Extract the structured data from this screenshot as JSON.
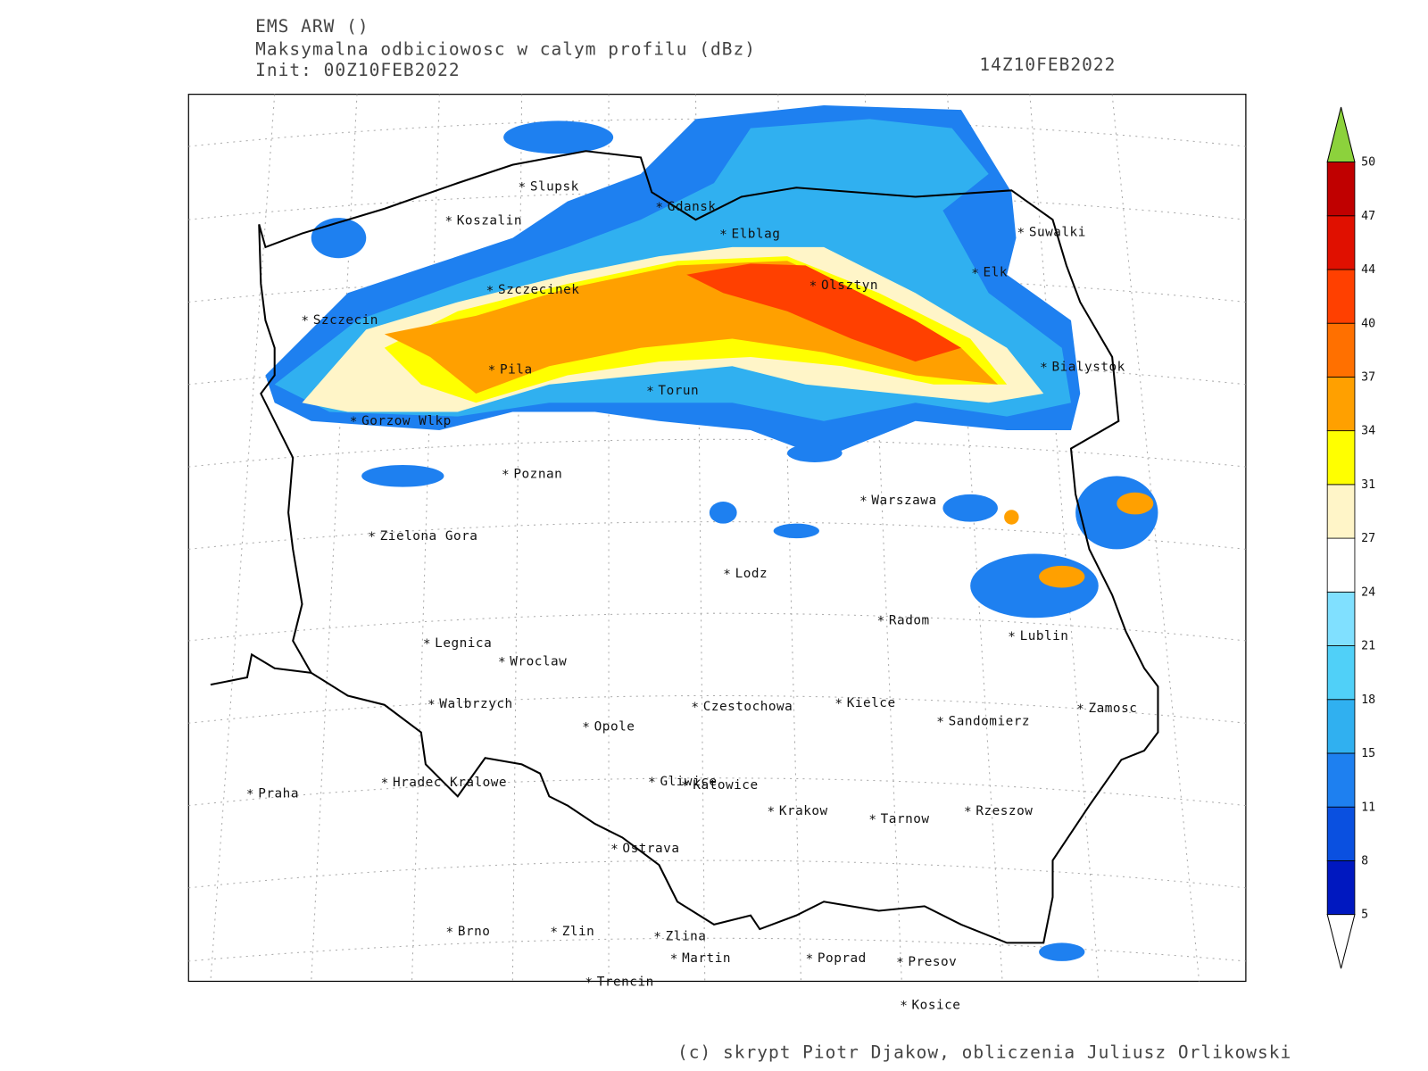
{
  "header": {
    "model": "EMS ARW ()",
    "field": "Maksymalna odbiciowosc w calym profilu (dBz)",
    "init": "Init: 00Z10FEB2022",
    "valid": "14Z10FEB2022"
  },
  "cities": [
    "Slupsk",
    "Koszalin",
    "Gdansk",
    "Elblag",
    "Suwalki",
    "Elk",
    "Olsztyn",
    "Szczecinek",
    "Szczecin",
    "Bialystok",
    "Pila",
    "Torun",
    "Gorzow Wlkp",
    "Poznan",
    "Warszawa",
    "Zielona Gora",
    "Lodz",
    "Radom",
    "Lublin",
    "Legnica",
    "Wroclaw",
    "Walbrzych",
    "Czestochowa",
    "Kielce",
    "Sandomierz",
    "Zamosc",
    "Opole",
    "Praha",
    "Hradec Kralowe",
    "Gliwice",
    "Katowice",
    "Krakow",
    "Tarnow",
    "Rzeszow",
    "Ostrava",
    "Brno",
    "Zlin",
    "Zlina",
    "Martin",
    "Poprad",
    "Presov",
    "Trencin",
    "Kosice"
  ],
  "colorbar": {
    "labels": [
      5,
      8,
      11,
      15,
      18,
      21,
      24,
      27,
      31,
      34,
      37,
      40,
      44,
      47,
      50
    ],
    "colors": [
      "#ffffff",
      "#0018c0",
      "#0a50e0",
      "#1e80f0",
      "#30b0f0",
      "#50d0f8",
      "#80e0ff",
      "#ffffff",
      "#fff5c8",
      "#ffff00",
      "#ffa000",
      "#ff7000",
      "#ff4000",
      "#e01000",
      "#c00000",
      "#8cd23c"
    ]
  },
  "footer": "(c) skrypt Piotr Djakow, obliczenia Juliusz Orlikowski"
}
